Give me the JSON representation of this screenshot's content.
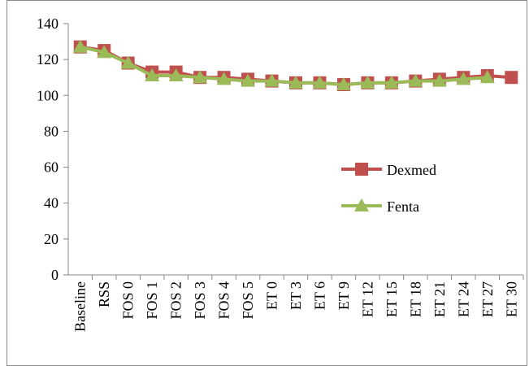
{
  "chart_data": {
    "type": "line",
    "categories": [
      "Baseline",
      "RSS",
      "FOS 0",
      "FOS 1",
      "FOS 2",
      "FOS 3",
      "FOS 4",
      "FOS 5",
      "ET 0",
      "ET 3",
      "ET 6",
      "ET 9",
      "ET 12",
      "ET 15",
      "ET 18",
      "ET 21",
      "ET 24",
      "ET 27",
      "ET 30"
    ],
    "series": [
      {
        "name": "Dexmed",
        "color": "#c0504d",
        "marker": "square",
        "values": [
          127,
          125,
          118,
          113,
          113,
          110,
          110,
          109,
          108,
          107,
          107,
          106,
          107,
          107,
          108,
          109,
          110,
          111,
          110
        ]
      },
      {
        "name": "Fenta",
        "color": "#9bbb59",
        "marker": "triangle",
        "values": [
          127,
          124,
          118,
          111,
          111,
          110,
          109,
          108,
          108,
          107,
          107,
          106,
          107,
          107,
          108,
          108,
          109,
          110,
          null
        ]
      }
    ],
    "ylim": [
      0,
      140
    ],
    "yticks": [
      0,
      20,
      40,
      60,
      80,
      100,
      120,
      140
    ],
    "grid": false,
    "legend": "right"
  }
}
